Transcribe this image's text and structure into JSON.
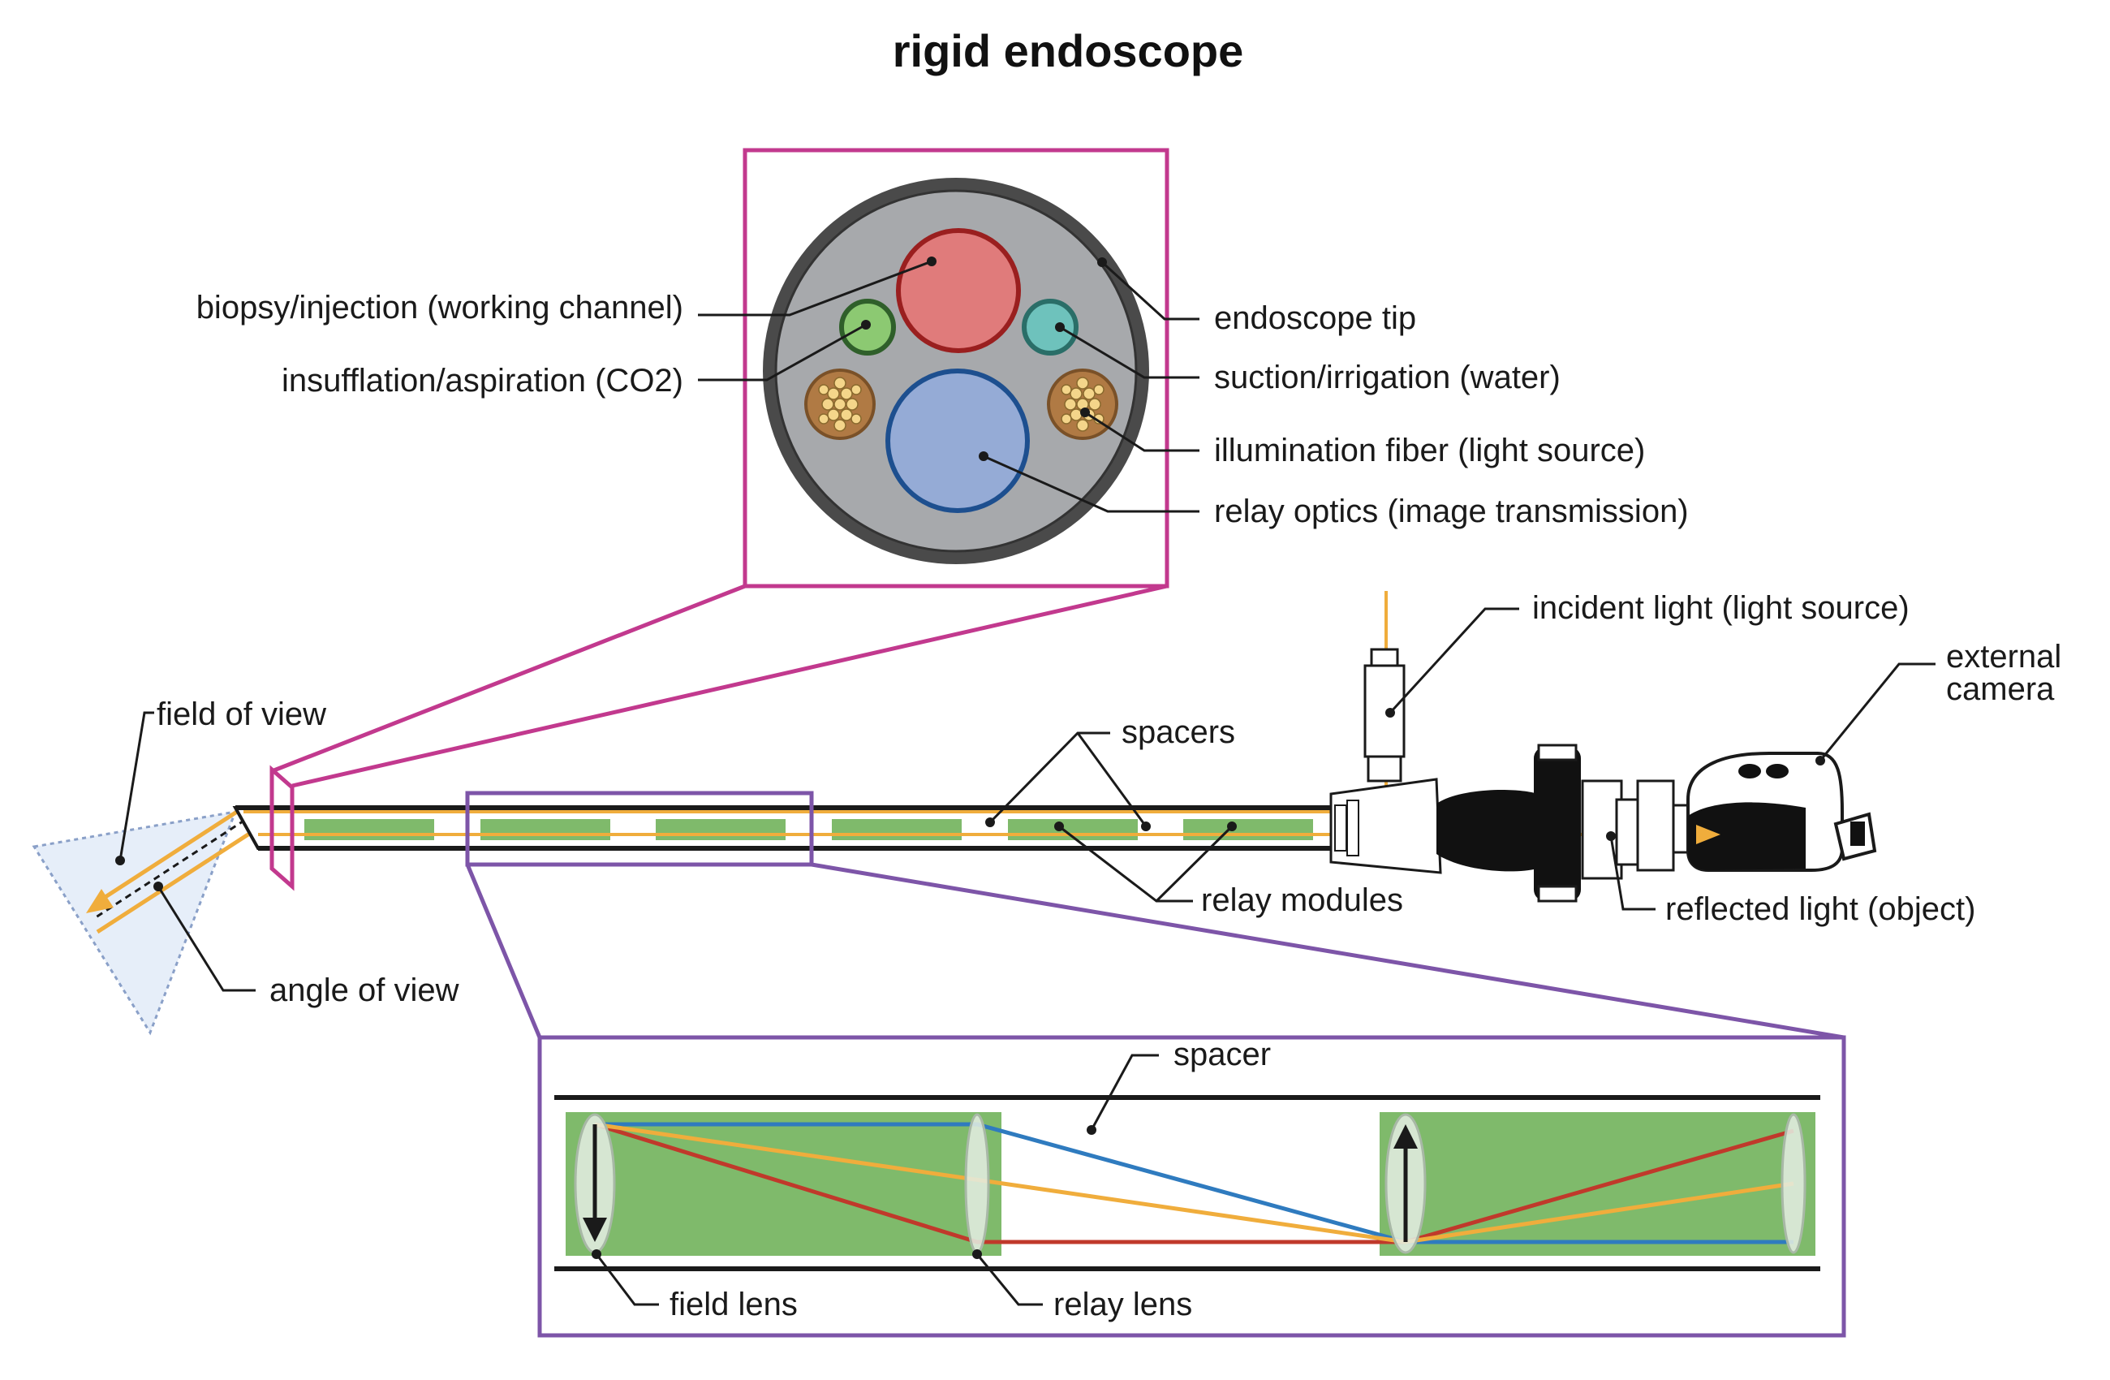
{
  "title": "rigid endoscope",
  "colors": {
    "magenta_frame": "#c2398e",
    "purple_frame": "#7d55a8",
    "relay_module_green": "#7fba6b",
    "light_ray_orange": "#f0ad3c",
    "ray_blue": "#2f7bbf",
    "ray_red": "#c0392b",
    "tip_outer": "#4a4a4a",
    "tip_inner": "#a7a9ac",
    "working_channel": "#e07b7b",
    "insufflation": "#8cc972",
    "suction": "#6ec2bc",
    "relay_optics": "#95abd6",
    "fiber_bundle": "#b07a44",
    "field_of_view_fill": "#e6eef9"
  },
  "cross_section_labels": {
    "biopsy": "biopsy/injection (working channel)",
    "insufflation": "insufflation/aspiration (CO2)",
    "endoscope_tip": "endoscope tip",
    "suction": "suction/irrigation (water)",
    "illumination": "illumination fiber (light source)",
    "relay_optics": "relay optics (image transmission)"
  },
  "scope_labels": {
    "field_of_view": "field of view",
    "angle_of_view": "angle of view",
    "spacers": "spacers",
    "relay_modules": "relay modules",
    "incident_light": "incident light (light source)",
    "external_camera_line1": "external",
    "external_camera_line2": "camera",
    "reflected_light": "reflected light (object)"
  },
  "detail_labels": {
    "spacer": "spacer",
    "field_lens": "field lens",
    "relay_lens": "relay lens"
  }
}
